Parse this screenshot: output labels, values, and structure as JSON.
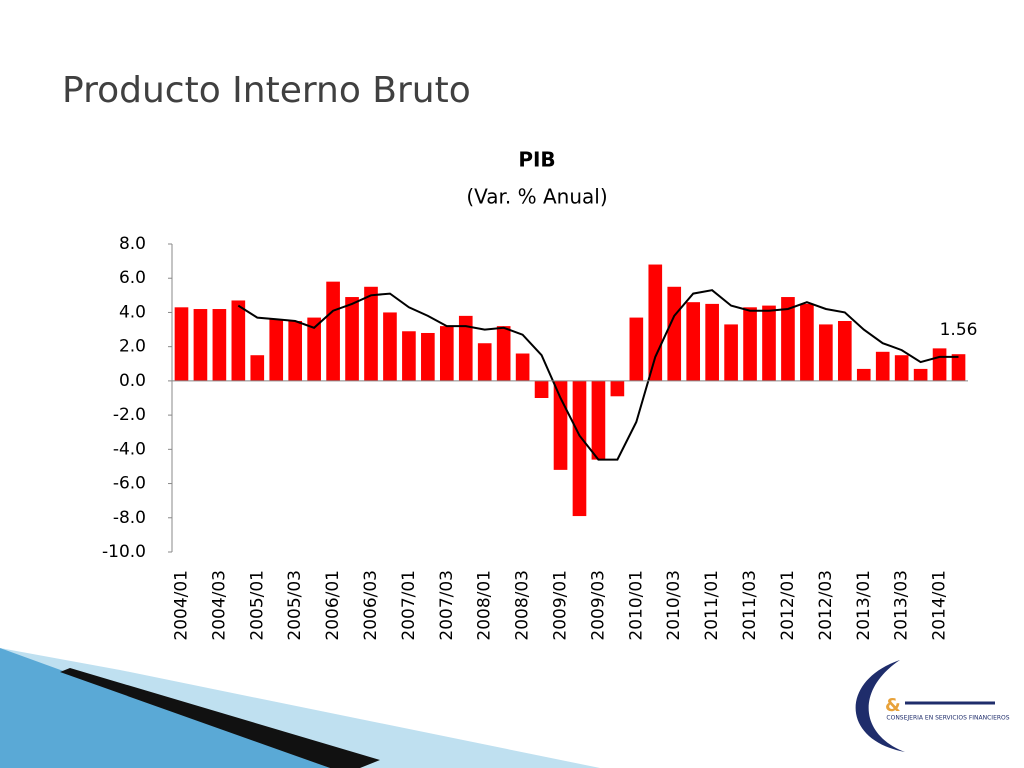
{
  "slide": {
    "title": "Producto Interno Bruto",
    "logo_text": "CONSEJERIA EN SERVICIOS FINANCIEROS"
  },
  "chart_data": {
    "type": "bar",
    "title": "PIB",
    "subtitle": "(Var. % Anual)",
    "categories": [
      "2004/01",
      null,
      "2004/03",
      null,
      "2005/01",
      null,
      "2005/03",
      null,
      "2006/01",
      null,
      "2006/03",
      null,
      "2007/01",
      null,
      "2007/03",
      null,
      "2008/01",
      null,
      "2008/03",
      null,
      "2009/01",
      null,
      "2009/03",
      null,
      "2010/01",
      null,
      "2010/03",
      null,
      "2011/01",
      null,
      "2011/03",
      null,
      "2012/01",
      null,
      "2012/03",
      null,
      "2013/01",
      null,
      "2013/03",
      null,
      "2014/01",
      null
    ],
    "series": [
      {
        "type": "bar",
        "color": "#ff0000",
        "values": [
          4.3,
          4.2,
          4.2,
          4.7,
          1.5,
          3.6,
          3.5,
          3.7,
          5.8,
          4.9,
          5.5,
          4.0,
          2.9,
          2.8,
          3.2,
          3.8,
          2.2,
          3.2,
          1.6,
          -1.0,
          -5.2,
          -7.9,
          -4.6,
          -0.9,
          3.7,
          6.8,
          5.5,
          4.6,
          4.5,
          3.3,
          4.3,
          4.4,
          4.9,
          4.5,
          3.3,
          3.5,
          0.7,
          1.7,
          1.5,
          0.7,
          1.9,
          1.56
        ]
      },
      {
        "type": "line",
        "color": "#000000",
        "values": [
          null,
          null,
          null,
          4.4,
          3.7,
          3.6,
          3.5,
          3.1,
          4.1,
          4.5,
          5.0,
          5.1,
          4.3,
          3.8,
          3.2,
          3.2,
          3.0,
          3.1,
          2.7,
          1.5,
          -1.0,
          -3.2,
          -4.6,
          -4.6,
          -2.4,
          1.4,
          3.8,
          5.1,
          5.3,
          4.4,
          4.1,
          4.1,
          4.2,
          4.6,
          4.2,
          4.0,
          3.0,
          2.2,
          1.8,
          1.1,
          1.4,
          1.4
        ]
      }
    ],
    "ylim": [
      -10,
      8
    ],
    "yticks": [
      {
        "value": -10,
        "label": "-10.0"
      },
      {
        "value": -8,
        "label": "-8.0"
      },
      {
        "value": -6,
        "label": "-6.0"
      },
      {
        "value": -4,
        "label": "-4.0"
      },
      {
        "value": -2,
        "label": "-2.0"
      },
      {
        "value": 0,
        "label": "0.0"
      },
      {
        "value": 2,
        "label": "2.0"
      },
      {
        "value": 4,
        "label": "4.0"
      },
      {
        "value": 6,
        "label": "6.0"
      },
      {
        "value": 8,
        "label": "8.0"
      }
    ],
    "grid": false,
    "labeled_points": [
      41
    ]
  }
}
